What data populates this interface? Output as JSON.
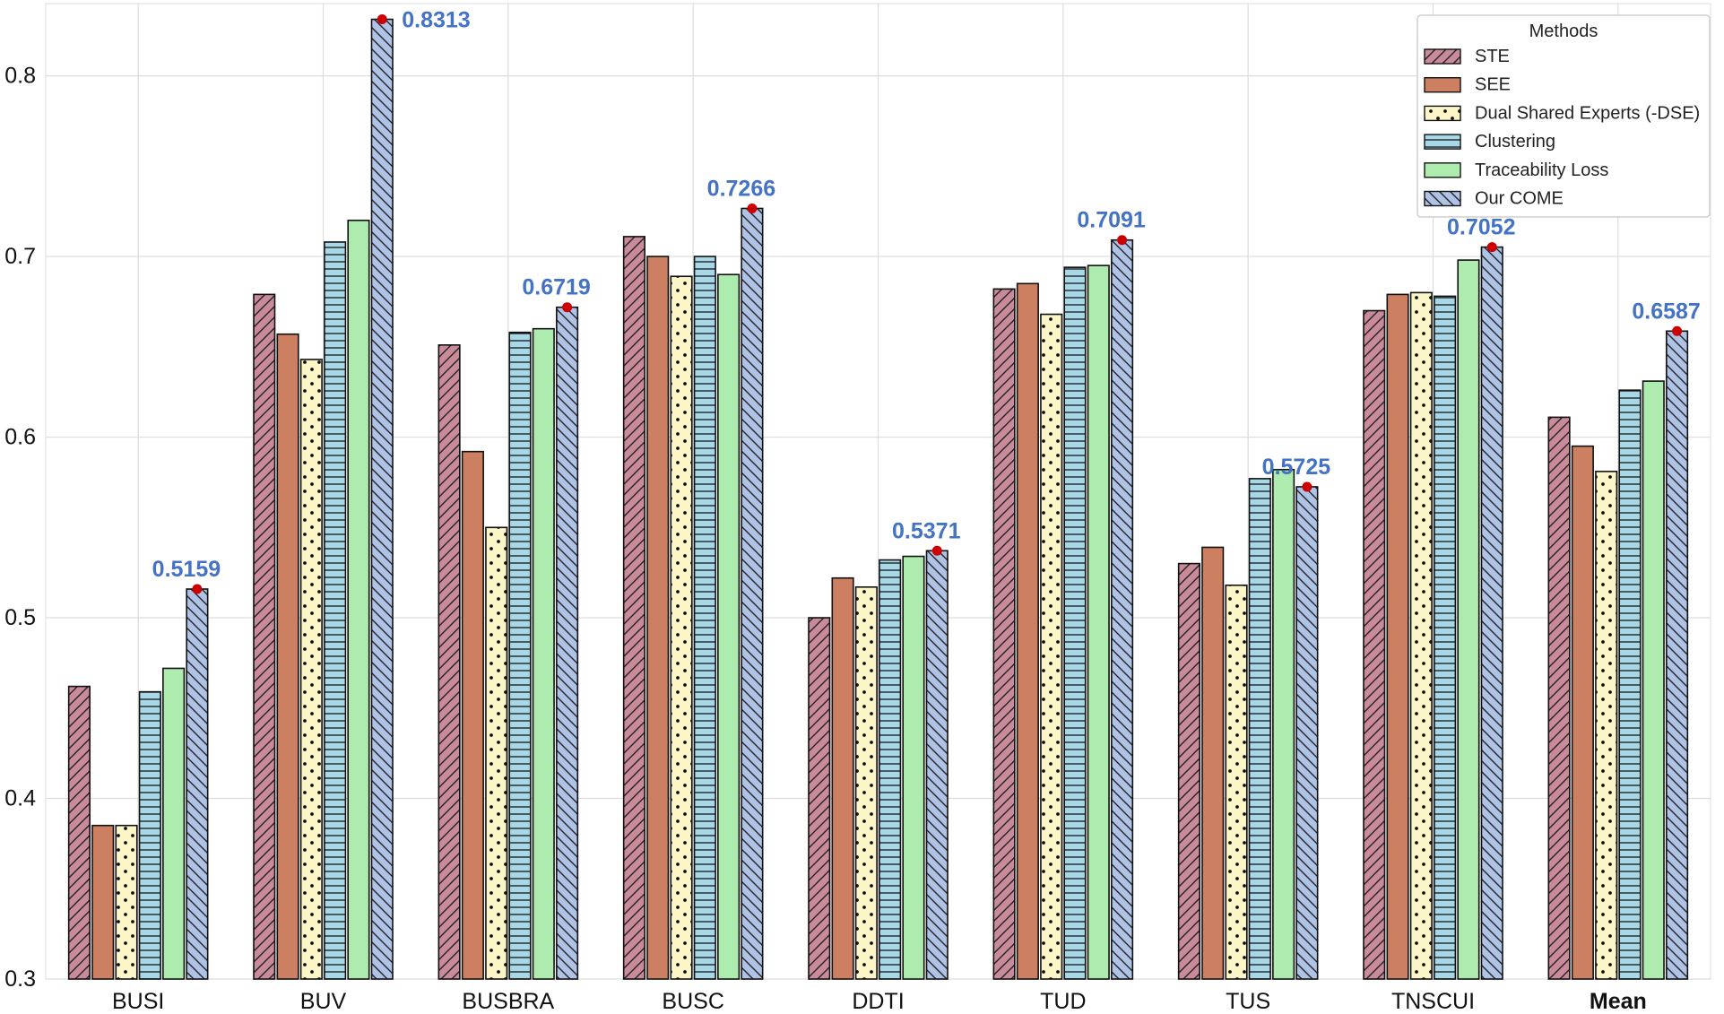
{
  "chart_data": {
    "type": "bar",
    "title": "",
    "xlabel": "",
    "ylabel": "",
    "ylim": [
      0.3,
      0.84
    ],
    "yticks": [
      "0.3",
      "0.4",
      "0.5",
      "0.6",
      "0.7",
      "0.8"
    ],
    "grid": true,
    "categories": [
      "BUSI",
      "BUV",
      "BUSBRA",
      "BUSC",
      "DDTI",
      "TUD",
      "TUS",
      "TNSCUI",
      "Mean"
    ],
    "bold_category": "Mean",
    "legend": {
      "title": "Methods",
      "position": "top-right"
    },
    "series": [
      {
        "name": "STE",
        "color": "#c98b9a",
        "pattern": "diag-fwd",
        "values": [
          0.462,
          0.679,
          0.651,
          0.711,
          0.5,
          0.682,
          0.53,
          0.67,
          0.611
        ]
      },
      {
        "name": "SEE",
        "color": "#cd7f62",
        "pattern": "none",
        "values": [
          0.385,
          0.657,
          0.592,
          0.7,
          0.522,
          0.685,
          0.539,
          0.679,
          0.595
        ]
      },
      {
        "name": "Dual Shared Experts (-DSE)",
        "color": "#fcf5c7",
        "pattern": "dots",
        "values": [
          0.385,
          0.643,
          0.55,
          0.689,
          0.517,
          0.668,
          0.518,
          0.68,
          0.581
        ]
      },
      {
        "name": "Clustering",
        "color": "#a6d8e8",
        "pattern": "horizontal",
        "values": [
          0.459,
          0.708,
          0.658,
          0.7,
          0.532,
          0.694,
          0.577,
          0.678,
          0.626
        ]
      },
      {
        "name": "Traceability Loss",
        "color": "#aeebae",
        "pattern": "none",
        "values": [
          0.472,
          0.72,
          0.66,
          0.69,
          0.534,
          0.695,
          0.582,
          0.698,
          0.631
        ]
      },
      {
        "name": "Our COME",
        "color": "#aec3e5",
        "pattern": "diag-back",
        "values": [
          0.5159,
          0.8313,
          0.6719,
          0.7266,
          0.5371,
          0.7091,
          0.5725,
          0.7052,
          0.6587
        ]
      }
    ],
    "annotations": {
      "series": "Our COME",
      "labels": [
        "0.5159",
        "0.8313",
        "0.6719",
        "0.7266",
        "0.5371",
        "0.7091",
        "0.5725",
        "0.7052",
        "0.6587"
      ],
      "color": "#4472c4",
      "marker_color": "#cc0000"
    }
  }
}
